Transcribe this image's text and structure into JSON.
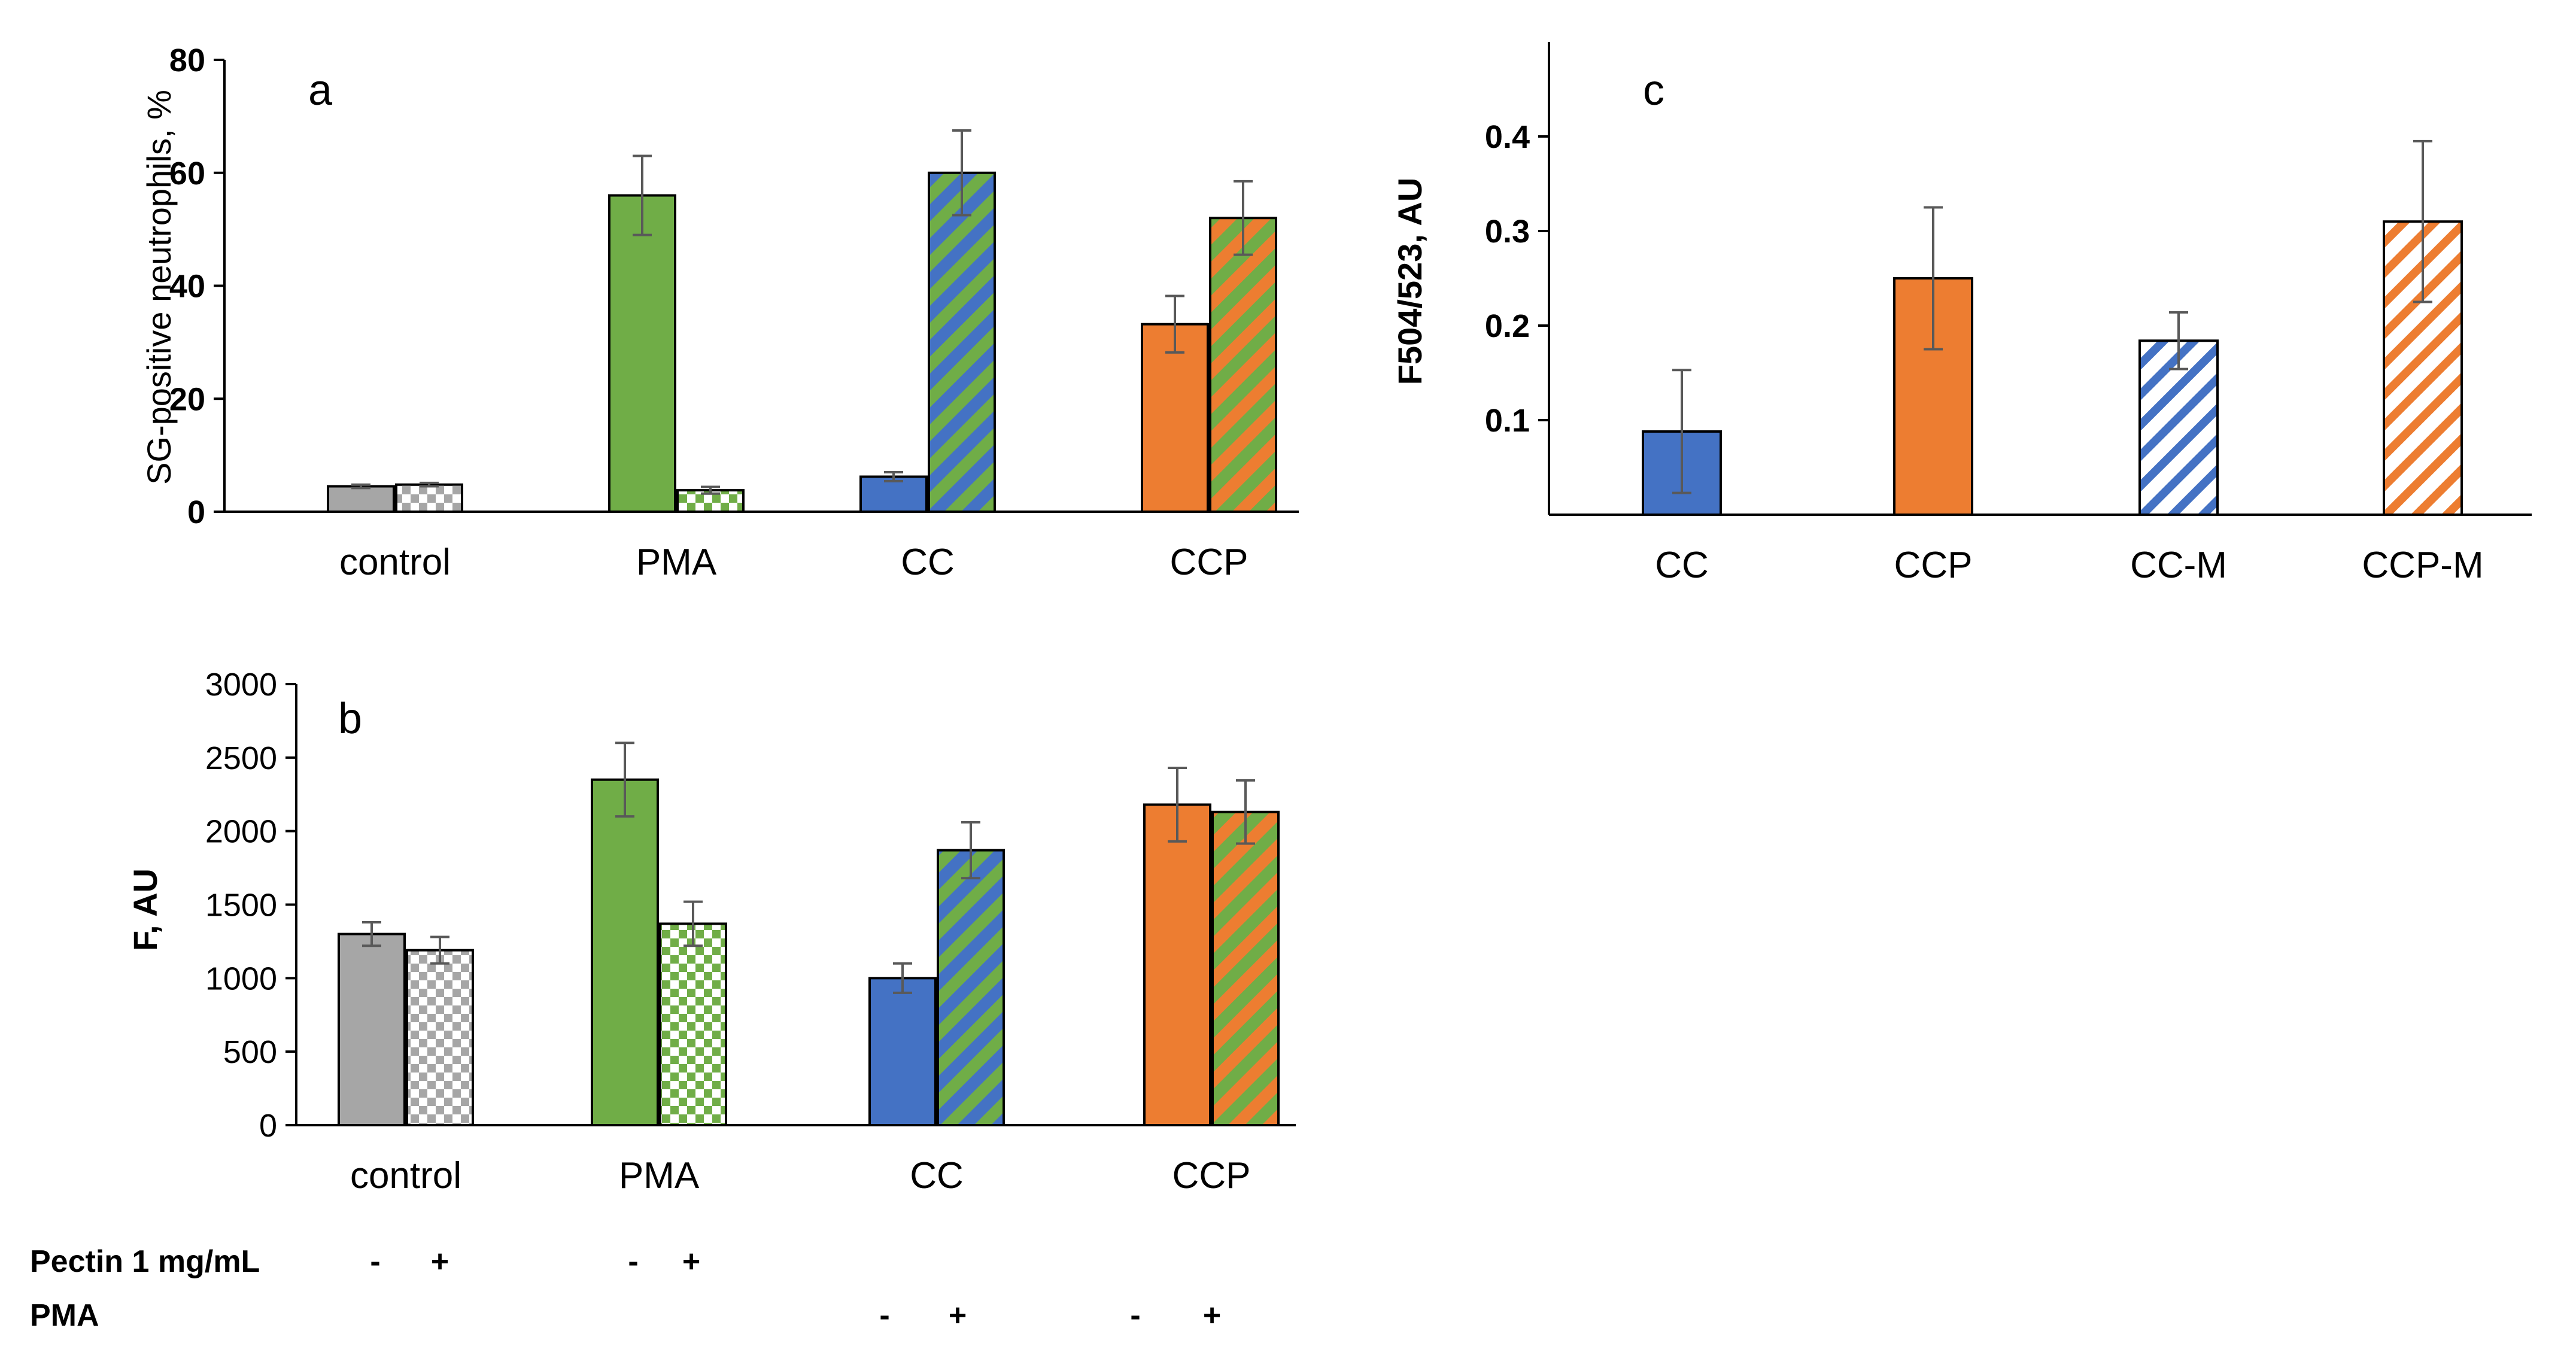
{
  "colors": {
    "gray": "#A6A6A6",
    "green": "#70AD47",
    "blue": "#4472C4",
    "orange": "#ED7D31",
    "error": "#595959"
  },
  "chart_data": [
    {
      "panel": "a",
      "type": "bar",
      "ylabel": "SG-positive neutrophils, %",
      "ylim": [
        0,
        80
      ],
      "yticks": [
        "0",
        "20",
        "40",
        "60",
        "80"
      ],
      "categories": [
        "control",
        "PMA",
        "CC",
        "CCP"
      ],
      "bars": [
        {
          "group": "control",
          "value": 4.5,
          "error": 0.3,
          "fill": "gray",
          "pattern": "solid"
        },
        {
          "group": "control",
          "value": 4.8,
          "error": 0.3,
          "fill": "gray",
          "pattern": "checker"
        },
        {
          "group": "PMA",
          "value": 56,
          "error": 7,
          "fill": "green",
          "pattern": "solid"
        },
        {
          "group": "PMA",
          "value": 3.8,
          "error": 0.6,
          "fill": "green",
          "pattern": "checker"
        },
        {
          "group": "CC",
          "value": 6.2,
          "error": 0.8,
          "fill": "blue",
          "pattern": "solid"
        },
        {
          "group": "CC",
          "value": 60,
          "error": 7.5,
          "fill": "blue",
          "pattern": "stripe-green"
        },
        {
          "group": "CCP",
          "value": 33.2,
          "error": 5,
          "fill": "orange",
          "pattern": "solid"
        },
        {
          "group": "CCP",
          "value": 52,
          "error": 6.5,
          "fill": "orange",
          "pattern": "stripe-green"
        }
      ]
    },
    {
      "panel": "b",
      "type": "bar",
      "ylabel": "F, AU",
      "ylim": [
        0,
        3000
      ],
      "yticks": [
        "0",
        "500",
        "1000",
        "1500",
        "2000",
        "2500",
        "3000"
      ],
      "categories": [
        "control",
        "PMA",
        "CC",
        "CCP"
      ],
      "bars": [
        {
          "group": "control",
          "value": 1300,
          "error": 80,
          "fill": "gray",
          "pattern": "solid"
        },
        {
          "group": "control",
          "value": 1190,
          "error": 90,
          "fill": "gray",
          "pattern": "checker"
        },
        {
          "group": "PMA",
          "value": 2350,
          "error": 250,
          "fill": "green",
          "pattern": "solid"
        },
        {
          "group": "PMA",
          "value": 1370,
          "error": 150,
          "fill": "green",
          "pattern": "checker"
        },
        {
          "group": "CC",
          "value": 1000,
          "error": 100,
          "fill": "blue",
          "pattern": "solid"
        },
        {
          "group": "CC",
          "value": 1870,
          "error": 190,
          "fill": "blue",
          "pattern": "stripe-green"
        },
        {
          "group": "CCP",
          "value": 2180,
          "error": 250,
          "fill": "orange",
          "pattern": "solid"
        },
        {
          "group": "CCP",
          "value": 2130,
          "error": 215,
          "fill": "orange",
          "pattern": "stripe-green"
        }
      ]
    },
    {
      "panel": "c",
      "type": "bar",
      "ylabel": "F504/523, AU",
      "ylim": [
        0,
        0.5
      ],
      "yticks": [
        "0.1",
        "0.2",
        "0.3",
        "0.4"
      ],
      "categories": [
        "CC",
        "CCP",
        "CC-M",
        "CCP-M"
      ],
      "bars": [
        {
          "group": "CC",
          "value": 0.088,
          "error": 0.065,
          "fill": "blue",
          "pattern": "solid"
        },
        {
          "group": "CCP",
          "value": 0.25,
          "error": 0.075,
          "fill": "orange",
          "pattern": "solid"
        },
        {
          "group": "CC-M",
          "value": 0.184,
          "error": 0.03,
          "fill": "blue",
          "pattern": "diag-white"
        },
        {
          "group": "CCP-M",
          "value": 0.31,
          "error": 0.085,
          "fill": "orange",
          "pattern": "diag-white"
        }
      ]
    }
  ],
  "legend": {
    "pectin_label": "Pectin 1 mg/mL",
    "pma_label": "PMA",
    "pectin_marks": [
      "-",
      "+",
      "-",
      "+"
    ],
    "pma_marks": [
      "-",
      "+",
      "-",
      "+"
    ]
  }
}
